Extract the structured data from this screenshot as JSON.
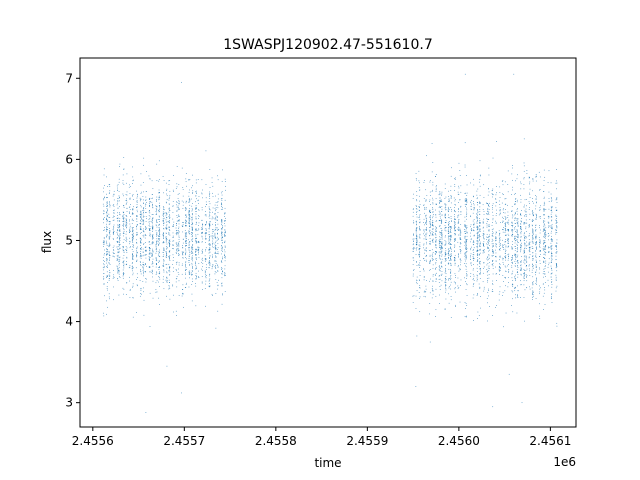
{
  "chart_data": {
    "type": "scatter",
    "title": "1SWASPJ120902.47-551610.7",
    "xlabel": "time",
    "ylabel": "flux",
    "x_offset_label": "1e6",
    "xlim": [
      2455586,
      2456128
    ],
    "ylim": [
      2.7,
      7.25
    ],
    "xticks": [
      2455600,
      2455700,
      2455800,
      2455900,
      2456000,
      2456100
    ],
    "xtick_labels": [
      "2.4556",
      "2.4557",
      "2.4558",
      "2.4559",
      "2.4560",
      "2.4561"
    ],
    "yticks": [
      3,
      4,
      5,
      6,
      7
    ],
    "ytick_labels": [
      "3",
      "4",
      "5",
      "6",
      "7"
    ],
    "grid": false,
    "marker": "point",
    "series": [
      {
        "color": "#1f77b4",
        "segments": [
          {
            "x_range": [
              2455611,
              2455747
            ],
            "flux_center": 5.05,
            "flux_spread": 0.55,
            "nights": 38
          },
          {
            "x_range": [
              2455950,
              2456108
            ],
            "flux_center": 5.0,
            "flux_spread": 0.6,
            "nights": 46
          }
        ],
        "extremes": [
          {
            "x": 2455697,
            "y": 6.95
          },
          {
            "x": 2455697,
            "y": 3.12
          },
          {
            "x": 2455681,
            "y": 3.45
          },
          {
            "x": 2455658,
            "y": 2.88
          },
          {
            "x": 2456007,
            "y": 7.05
          },
          {
            "x": 2456060,
            "y": 7.05
          },
          {
            "x": 2456037,
            "y": 2.95
          },
          {
            "x": 2456055,
            "y": 3.35
          },
          {
            "x": 2456069,
            "y": 3.0
          },
          {
            "x": 2455953,
            "y": 3.2
          }
        ]
      }
    ]
  }
}
